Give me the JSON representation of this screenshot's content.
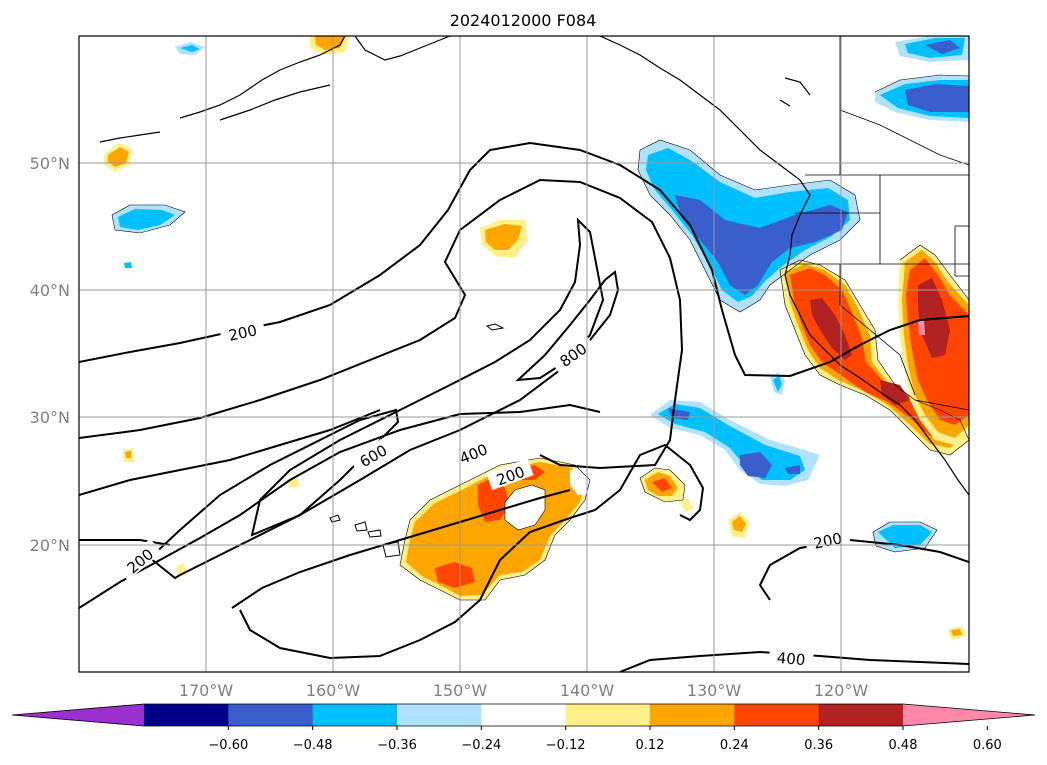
{
  "title": "2024012000 F084",
  "map": {
    "lon_labels": [
      "170°W",
      "160°W",
      "150°W",
      "140°W",
      "130°W",
      "120°W"
    ],
    "lat_labels": [
      "50°N",
      "40°N",
      "30°N",
      "20°N"
    ],
    "lon_range": [
      -180,
      -110
    ],
    "lat_range": [
      10,
      60
    ],
    "grid": true,
    "contour_labels": [
      "200",
      "200",
      "200",
      "200",
      "400",
      "400",
      "600",
      "800"
    ]
  },
  "colorbar": {
    "tick_labels": [
      "−0.60",
      "−0.48",
      "−0.36",
      "−0.24",
      "−0.12",
      "0.12",
      "0.24",
      "0.36",
      "0.48",
      "0.60"
    ],
    "colors": [
      "#9b30d0",
      "#00008b",
      "#3a5fcd",
      "#00bfff",
      "#b0e2ff",
      "#ffffff",
      "#fff08a",
      "#ffa500",
      "#ff4500",
      "#b22222",
      "#ff88aa"
    ],
    "extend": "both"
  },
  "fill_colors": {
    "light_blue": "#b0e2ff",
    "cyan": "#00bfff",
    "royal_blue": "#3a5fcd",
    "navy": "#00008b",
    "light_yellow": "#fff08a",
    "orange": "#ffa500",
    "red_orange": "#ff4500",
    "firebrick": "#b22222",
    "pink": "#ff88aa"
  }
}
